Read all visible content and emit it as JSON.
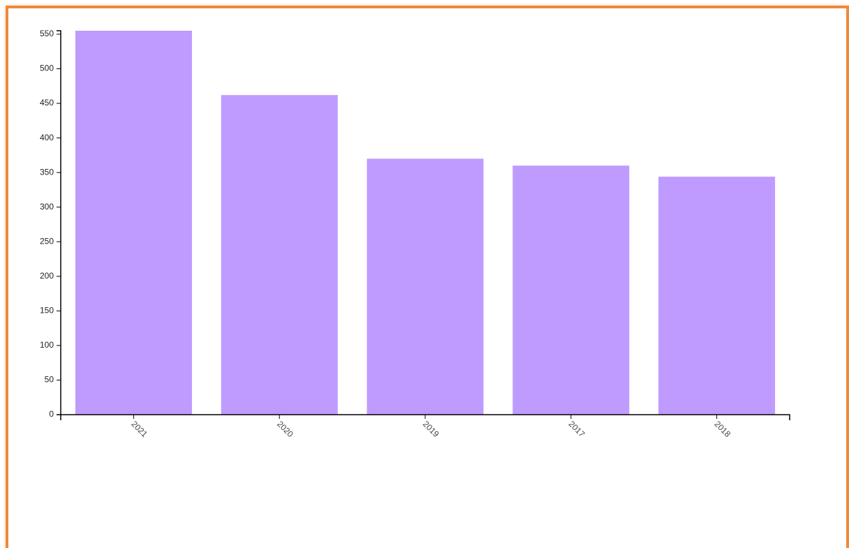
{
  "chart_data": {
    "type": "bar",
    "categories": [
      "2021",
      "2020",
      "2019",
      "2017",
      "2018"
    ],
    "values": [
      555,
      462,
      370,
      360,
      344
    ],
    "title": "",
    "xlabel": "",
    "ylabel": "",
    "ylim": [
      0,
      555
    ],
    "yticks": [
      "0",
      "50",
      "100",
      "150",
      "200",
      "250",
      "300",
      "350",
      "400",
      "450",
      "500",
      "550"
    ],
    "grid": false,
    "legend": "none",
    "bar_color": "#bf9bff",
    "axis_color": "#000000",
    "frame_color": "#ef8a3c"
  }
}
